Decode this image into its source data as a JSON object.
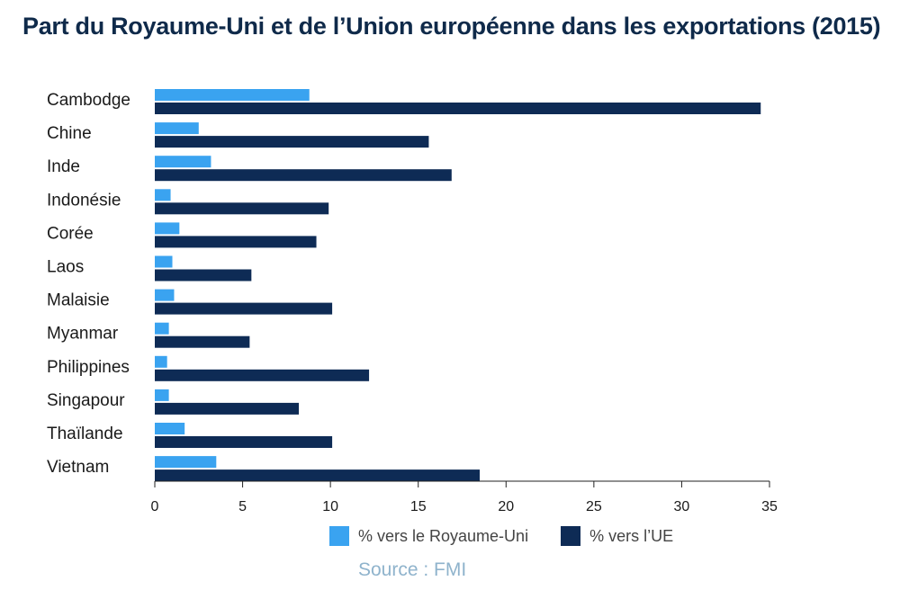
{
  "chart_data": {
    "type": "bar",
    "orientation": "horizontal",
    "title": "Part du Royaume-Uni et de l’Union européenne dans les exportations (2015)",
    "categories": [
      "Cambodge",
      "Chine",
      "Inde",
      "Indonésie",
      "Corée",
      "Laos",
      "Malaisie",
      "Myanmar",
      "Philippines",
      "Singapour",
      "Thaïlande",
      "Vietnam"
    ],
    "series": [
      {
        "name": "% vers le Royaume-Uni",
        "color": "#3aa3f0",
        "values": [
          8.8,
          2.5,
          3.2,
          0.9,
          1.4,
          1.0,
          1.1,
          0.8,
          0.7,
          0.8,
          1.7,
          3.5
        ]
      },
      {
        "name": "% vers l’UE",
        "color": "#0e2b55",
        "values": [
          34.5,
          15.6,
          16.9,
          9.9,
          9.2,
          5.5,
          10.1,
          5.4,
          12.2,
          8.2,
          10.1,
          18.5
        ]
      }
    ],
    "xlim": [
      0,
      35
    ],
    "xticks": [
      "0",
      "5",
      "10",
      "15",
      "20",
      "25",
      "30",
      "35"
    ],
    "legend_position": "bottom",
    "grid": false
  },
  "source": "Source : FMI"
}
